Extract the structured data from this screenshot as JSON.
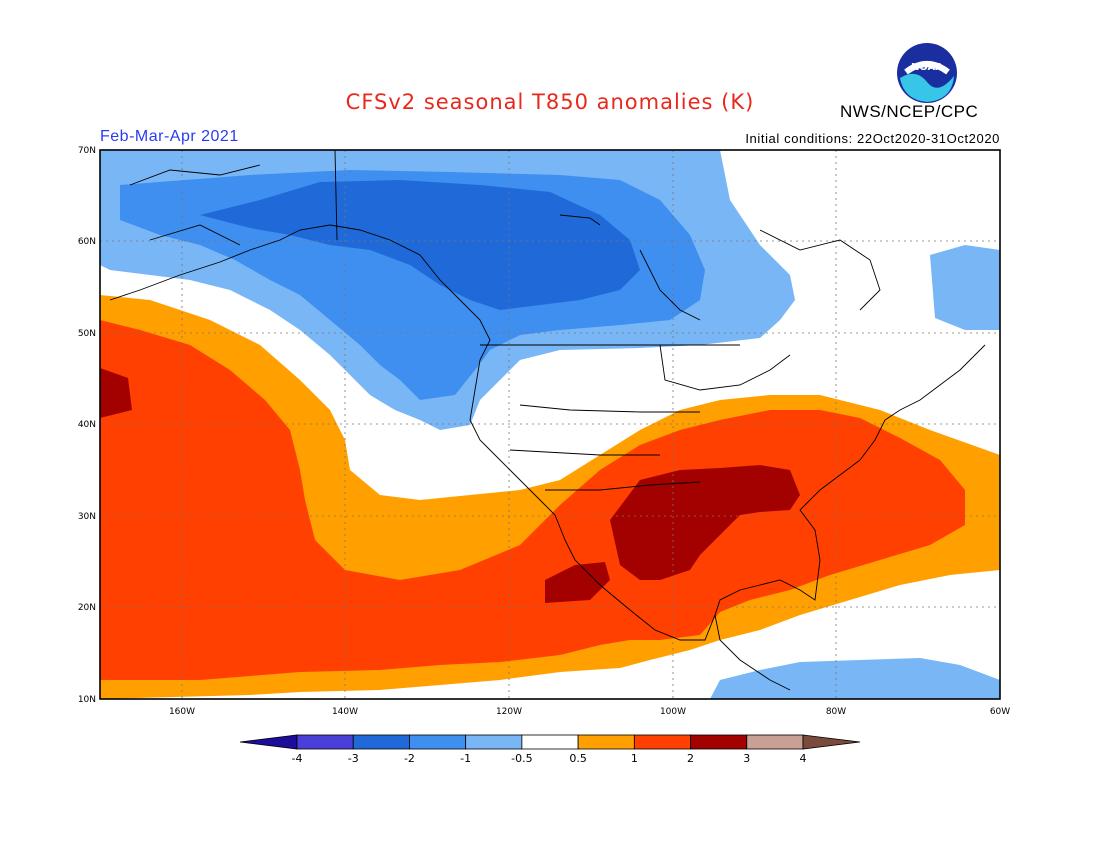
{
  "header": {
    "title": "CFSv2 seasonal T850 anomalies (K)",
    "agency": "NWS/NCEP/CPC",
    "logo_text": "NOAA",
    "period": "Feb-Mar-Apr 2021",
    "initial_conditions": "Initial conditions: 22Oct2020-31Oct2020"
  },
  "map": {
    "lat_labels": [
      "70N",
      "60N",
      "50N",
      "40N",
      "30N",
      "20N",
      "10N"
    ],
    "lon_labels": [
      "160W",
      "140W",
      "120W",
      "100W",
      "80W",
      "60W"
    ]
  },
  "legend": {
    "tick_labels": [
      "-4",
      "-3",
      "-2",
      "-1",
      "-0.5",
      "0.5",
      "1",
      "2",
      "3",
      "4"
    ],
    "colors": [
      "#1c0d9a",
      "#4a3fd8",
      "#1f6ad8",
      "#3e8ff0",
      "#78b6f6",
      "#ffffff",
      "#ffa000",
      "#ff4000",
      "#a30000",
      "#c8a094",
      "#7a4a3a"
    ]
  }
}
